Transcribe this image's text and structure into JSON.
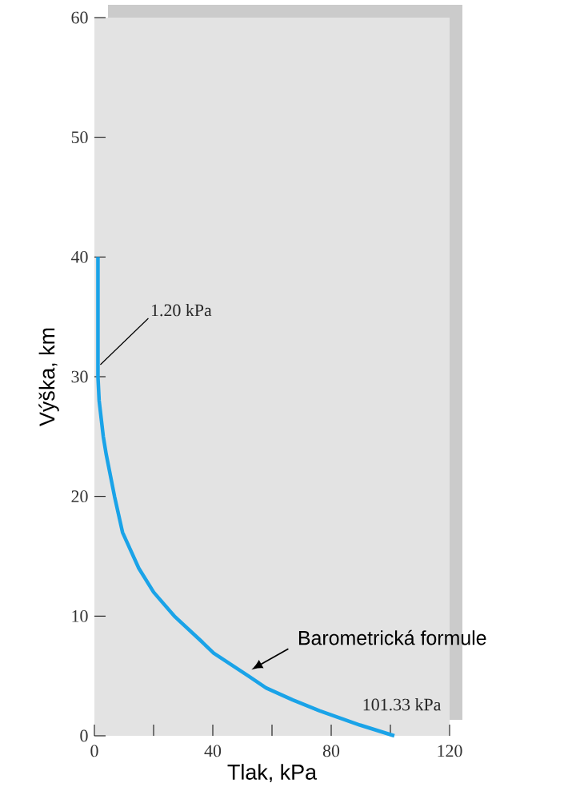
{
  "chart_data": {
    "type": "line",
    "xlabel": "Tlak, kPa",
    "ylabel": "Výška,  km",
    "xlim": [
      0,
      120
    ],
    "ylim": [
      0,
      60
    ],
    "xticks": [
      0,
      {
        "value": 20,
        "label": null
      },
      40,
      {
        "value": 60,
        "label": null
      },
      80,
      {
        "value": 100,
        "label": null
      },
      120
    ],
    "yticks": [
      0,
      10,
      20,
      30,
      40,
      50,
      60
    ],
    "series": [
      {
        "color": "#1aa3e8",
        "x": [
          1.2,
          1.2,
          1.6,
          3,
          4,
          6.8,
          9.5,
          15,
          20,
          27,
          35.7,
          40.3,
          52,
          58,
          67,
          76,
          89.7,
          101.33
        ],
        "values": [
          40,
          30,
          28,
          25,
          23.5,
          20,
          17,
          14,
          12,
          10,
          8,
          6.9,
          5,
          4,
          3,
          2.1,
          0.9,
          0
        ]
      }
    ],
    "annotations": [
      {
        "text": "1.20 kPa",
        "x": 1.2,
        "y": 31
      },
      {
        "text": "101.33 kPa",
        "x": 101.33,
        "y": 0
      },
      {
        "text": "Barometrická formule",
        "x": 52,
        "y": 5
      }
    ]
  }
}
